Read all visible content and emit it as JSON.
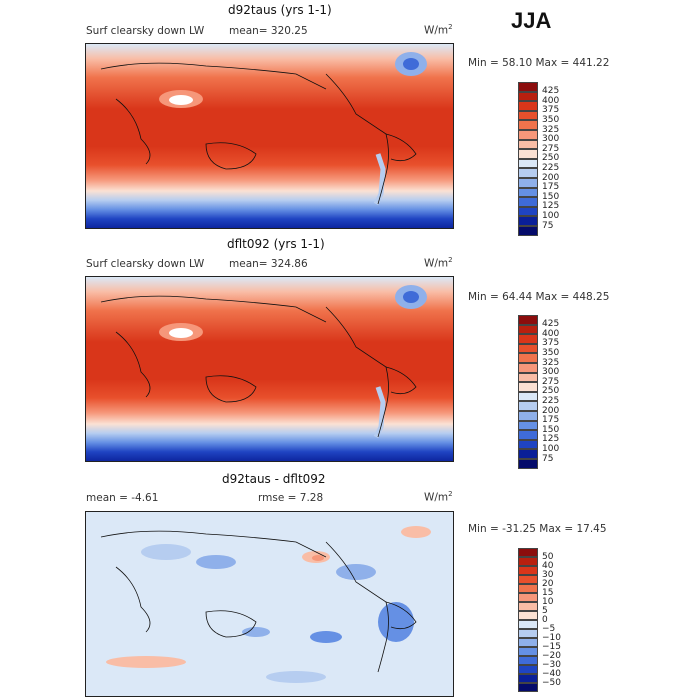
{
  "season": "JJA",
  "panels": [
    {
      "title": "d92taus (yrs 1-1)",
      "left_label": "Surf clearsky down LW",
      "mean_text": "mean= 320.25",
      "units": "W/m",
      "units_sup": "2",
      "minmax": "Min =   58.10 Max = 441.22",
      "kind": "abs",
      "colorbar_labels": [
        "425",
        "400",
        "375",
        "350",
        "325",
        "300",
        "275",
        "250",
        "225",
        "200",
        "175",
        "150",
        "125",
        "100",
        "75"
      ]
    },
    {
      "title": "dflt092 (yrs 1-1)",
      "left_label": "Surf clearsky down LW",
      "mean_text": "mean= 324.86",
      "units": "W/m",
      "units_sup": "2",
      "minmax": "Min =   64.44 Max = 448.25",
      "kind": "abs",
      "colorbar_labels": [
        "425",
        "400",
        "375",
        "350",
        "325",
        "300",
        "275",
        "250",
        "225",
        "200",
        "175",
        "150",
        "125",
        "100",
        "75"
      ]
    },
    {
      "title": "d92taus - dflt092",
      "left_label": "mean =   -4.61",
      "mean_text": "rmse =    7.28",
      "units": "W/m",
      "units_sup": "2",
      "minmax": "Min = -31.25 Max =   17.45",
      "kind": "diff",
      "colorbar_labels": [
        "50",
        "40",
        "30",
        "20",
        "15",
        "10",
        "5",
        "0",
        "−5",
        "−10",
        "−15",
        "−20",
        "−30",
        "−40",
        "−50"
      ]
    }
  ],
  "colors": {
    "abs": [
      "#8b0d0d",
      "#b8200f",
      "#d9361a",
      "#e8502c",
      "#f0734c",
      "#f6977a",
      "#f9bda6",
      "#fbe1d3",
      "#dbe8f7",
      "#b6cdf0",
      "#8fb0ea",
      "#6590e4",
      "#3f6bd8",
      "#1f44c2",
      "#0a1f98",
      "#050b6a"
    ],
    "diff": [
      "#8b0d0d",
      "#b8200f",
      "#d9361a",
      "#e8502c",
      "#f0734c",
      "#f6977a",
      "#f9bda6",
      "#fbe1d3",
      "#dbe8f7",
      "#b6cdf0",
      "#8fb0ea",
      "#6590e4",
      "#3f6bd8",
      "#1f44c2",
      "#0a1f98",
      "#050b6a"
    ]
  }
}
